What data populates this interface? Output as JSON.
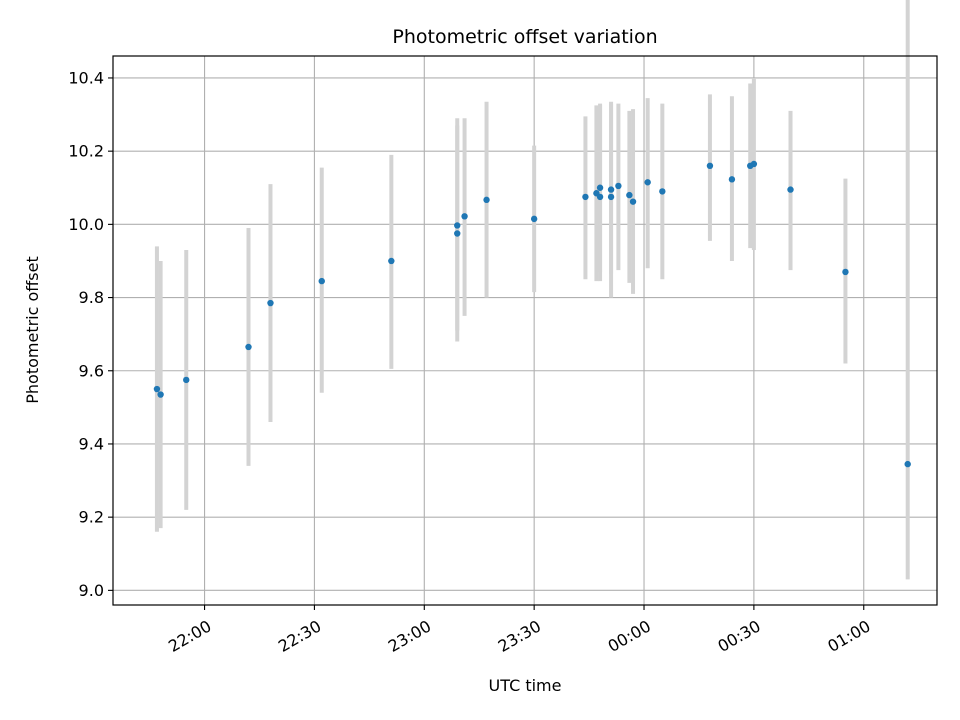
{
  "chart_data": {
    "type": "scatter",
    "title": "Photometric offset variation",
    "xlabel": "UTC time",
    "ylabel": "Photometric offset",
    "x_axis_kind": "time",
    "x_ticks": [
      "22:00",
      "22:30",
      "23:00",
      "23:30",
      "00:00",
      "00:30",
      "01:00"
    ],
    "x_range": [
      "21:35",
      "01:20"
    ],
    "y_ticks": [
      "9.0",
      "9.2",
      "9.4",
      "9.6",
      "9.8",
      "10.0",
      "10.2",
      "10.4"
    ],
    "ylim": [
      8.96,
      10.46
    ],
    "grid": true,
    "colors": {
      "point": "#1f77b4",
      "errorbar": "#d3d3d3",
      "grid": "#b0b0b0"
    },
    "series": [
      {
        "x": [
          "21:47",
          "21:48",
          "21:55",
          "22:12",
          "22:18",
          "22:32",
          "22:51",
          "23:09",
          "23:09",
          "23:11",
          "23:17",
          "23:30",
          "23:44",
          "23:47",
          "23:48",
          "23:48",
          "23:51",
          "23:51",
          "23:53",
          "23:56",
          "23:57",
          "00:01",
          "00:05",
          "00:18",
          "00:24",
          "00:29",
          "00:30",
          "00:40",
          "00:55",
          "01:12"
        ],
        "y": [
          9.55,
          9.535,
          9.575,
          9.665,
          9.785,
          9.845,
          9.9,
          9.975,
          9.997,
          10.022,
          10.067,
          10.015,
          10.075,
          10.085,
          10.075,
          10.1,
          10.075,
          10.095,
          10.105,
          10.08,
          10.062,
          10.115,
          10.09,
          10.16,
          10.123,
          10.16,
          10.165,
          10.095,
          9.87,
          9.345
        ],
        "err_low": [
          9.16,
          9.17,
          9.22,
          9.34,
          9.46,
          9.54,
          9.605,
          9.68,
          9.71,
          9.75,
          9.8,
          9.815,
          9.85,
          9.845,
          9.845,
          9.87,
          9.8,
          9.865,
          9.875,
          9.84,
          9.81,
          9.88,
          9.85,
          9.955,
          9.9,
          9.935,
          9.93,
          9.875,
          9.62,
          9.03
        ],
        "err_high": [
          9.94,
          9.9,
          9.93,
          9.99,
          10.11,
          10.155,
          10.19,
          10.27,
          10.29,
          10.29,
          10.335,
          10.215,
          10.295,
          10.325,
          10.325,
          10.33,
          10.33,
          10.335,
          10.33,
          10.31,
          10.315,
          10.345,
          10.33,
          10.355,
          10.35,
          10.385,
          10.4,
          10.31,
          10.125,
          10.665
        ]
      }
    ]
  }
}
